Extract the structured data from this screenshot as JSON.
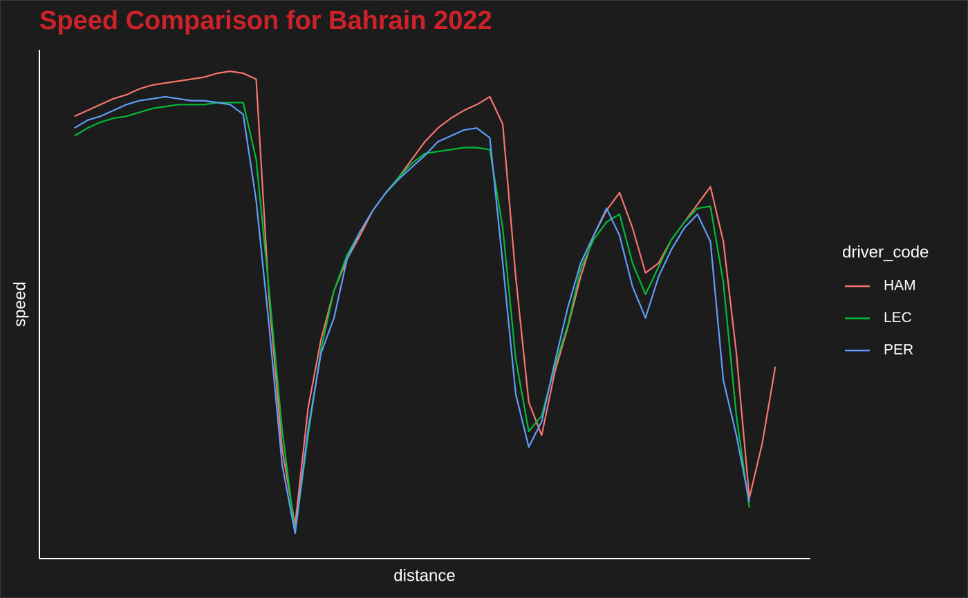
{
  "chart_data": {
    "type": "line",
    "title": "Speed Comparison for Bahrain 2022",
    "x_label": "distance",
    "y_label": "speed",
    "legend_title": "driver_code",
    "legend_position": "right",
    "xlim": [
      -270,
      5670
    ],
    "ylim": [
      70,
      330
    ],
    "x": [
      0,
      100,
      200,
      300,
      400,
      500,
      600,
      700,
      800,
      900,
      1000,
      1100,
      1200,
      1300,
      1400,
      1500,
      1600,
      1700,
      1800,
      1900,
      2000,
      2100,
      2200,
      2300,
      2400,
      2500,
      2600,
      2700,
      2800,
      2900,
      3000,
      3100,
      3200,
      3300,
      3400,
      3500,
      3600,
      3700,
      3800,
      3900,
      4000,
      4100,
      4200,
      4300,
      4400,
      4500,
      4600,
      4700,
      4800,
      4900,
      5000,
      5100,
      5200,
      5300,
      5400
    ],
    "series": [
      {
        "name": "HAM",
        "color": "#f8766d",
        "values": [
          296,
          299,
          302,
          305,
          307,
          310,
          312,
          313,
          314,
          315,
          316,
          318,
          319,
          318,
          315,
          203,
          126,
          87,
          147,
          182,
          207,
          223,
          235,
          248,
          257,
          265,
          274,
          283,
          290,
          295,
          299,
          302,
          306,
          292,
          214,
          150,
          133,
          165,
          188,
          214,
          235,
          248,
          257,
          239,
          216,
          221,
          233,
          242,
          251,
          260,
          232,
          175,
          101,
          129,
          168
        ]
      },
      {
        "name": "LEC",
        "color": "#00ba38",
        "values": [
          286,
          290,
          293,
          295,
          296,
          298,
          300,
          301,
          302,
          302,
          302,
          303,
          303,
          303,
          274,
          207,
          136,
          83,
          133,
          177,
          207,
          225,
          237,
          248,
          257,
          265,
          272,
          277,
          278,
          279,
          280,
          280,
          279,
          239,
          172,
          135,
          143,
          168,
          189,
          218,
          233,
          242,
          246,
          221,
          205,
          219,
          233,
          242,
          249,
          250,
          211,
          143,
          96,
          null,
          null
        ]
      },
      {
        "name": "PER",
        "color": "#619cff",
        "values": [
          290,
          294,
          296,
          299,
          302,
          304,
          305,
          306,
          305,
          304,
          304,
          303,
          302,
          297,
          253,
          189,
          118,
          83,
          136,
          175,
          193,
          223,
          237,
          248,
          257,
          264,
          270,
          276,
          283,
          286,
          289,
          290,
          285,
          221,
          154,
          127,
          140,
          170,
          198,
          221,
          235,
          249,
          235,
          209,
          193,
          214,
          228,
          239,
          246,
          232,
          161,
          133,
          99,
          null,
          null
        ]
      }
    ]
  }
}
